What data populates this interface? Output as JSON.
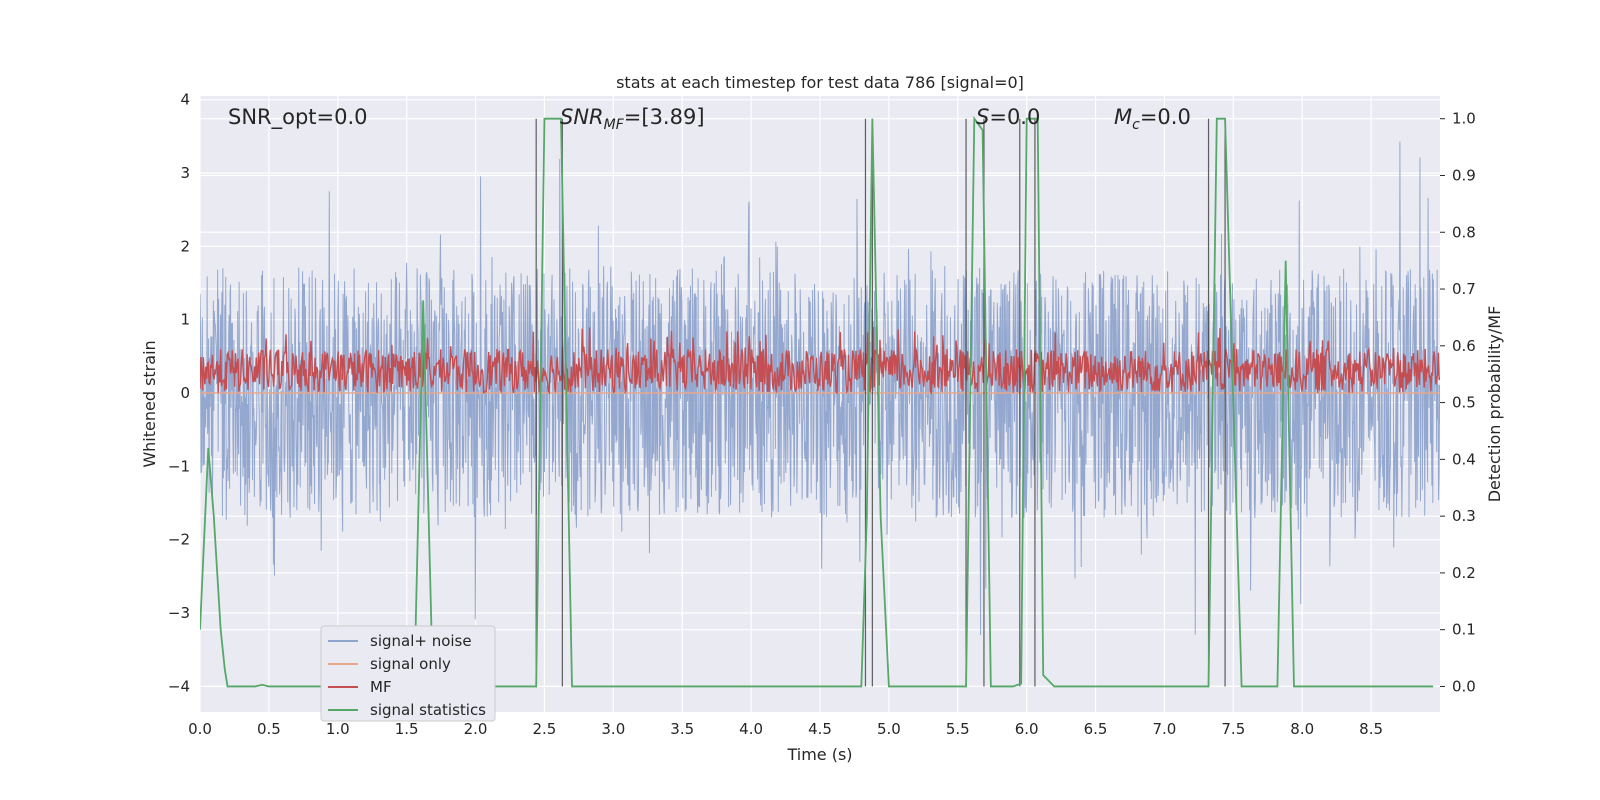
{
  "chart_data": {
    "type": "line",
    "title": "stats at each timestep for test data 786 [signal=0]",
    "xlabel": "Time (s)",
    "ylabel": "Whitened strain",
    "ylabel_right": "Detection probability/MF",
    "xlim": [
      0.0,
      9.0
    ],
    "ylim": [
      -4.35,
      4.05
    ],
    "ylim_right": [
      -0.045,
      1.04
    ],
    "x_ticks": [
      "0.0",
      "0.5",
      "1.0",
      "1.5",
      "2.0",
      "2.5",
      "3.0",
      "3.5",
      "4.0",
      "4.5",
      "5.0",
      "5.5",
      "6.0",
      "6.5",
      "7.0",
      "7.5",
      "8.0",
      "8.5"
    ],
    "y_ticks": [
      "−4",
      "−3",
      "−2",
      "−1",
      "0",
      "1",
      "2",
      "3",
      "4"
    ],
    "y_ticks_right": [
      "0.0",
      "0.1",
      "0.2",
      "0.3",
      "0.4",
      "0.5",
      "0.6",
      "0.7",
      "0.8",
      "0.9",
      "1.0"
    ],
    "grid": true,
    "legend_position": "lower-left",
    "annotations": {
      "snr_opt": "SNR_opt=0.0",
      "snr_mf_base": "SNR",
      "snr_mf_sub": "MF",
      "snr_mf_value": "=[3.89]",
      "s_base": "S",
      "s_value": "=0.0",
      "mc_base": "M",
      "mc_sub": "c",
      "mc_value": "=0.0"
    },
    "series": [
      {
        "name": "signal+ noise",
        "color": "#8fa4cc",
        "axis": "left",
        "description_range": [
          -3.3,
          3.7
        ],
        "typical_envelope": [
          -1.7,
          1.7
        ]
      },
      {
        "name": "signal only",
        "color": "#e8a88c",
        "axis": "left",
        "values_constant": 0.0
      },
      {
        "name": "MF",
        "color": "#c44e52",
        "axis": "left",
        "typical_range": [
          0.0,
          0.6
        ]
      },
      {
        "name": "signal statistics",
        "color": "#55a868",
        "axis": "right",
        "x": [
          0.0,
          0.06,
          0.1,
          0.15,
          0.18,
          0.2,
          0.25,
          0.4,
          0.45,
          0.5,
          1.5,
          1.56,
          1.62,
          1.68,
          1.72,
          2.44,
          2.5,
          2.62,
          2.7,
          4.8,
          4.84,
          4.88,
          4.94,
          5.0,
          5.56,
          5.62,
          5.68,
          5.74,
          5.9,
          5.96,
          6.0,
          6.08,
          6.12,
          6.2,
          7.32,
          7.38,
          7.44,
          7.56,
          7.82,
          7.88,
          7.94,
          8.2,
          8.95
        ],
        "values": [
          0.1,
          0.42,
          0.3,
          0.1,
          0.03,
          0.0,
          0.0,
          0.0,
          0.003,
          0.0,
          0.0,
          0.05,
          0.68,
          0.1,
          0.0,
          0.0,
          1.0,
          1.0,
          0.0,
          0.0,
          0.3,
          1.0,
          0.3,
          0.0,
          0.0,
          1.0,
          0.98,
          0.0,
          0.0,
          0.005,
          1.0,
          1.0,
          0.02,
          0.0,
          0.0,
          1.0,
          1.0,
          0.0,
          0.0,
          0.75,
          0.0,
          0.0,
          0.0
        ]
      }
    ],
    "vertical_lines_x": [
      2.44,
      2.63,
      4.83,
      4.88,
      5.56,
      5.69,
      5.95,
      6.06,
      7.32,
      7.44
    ]
  }
}
